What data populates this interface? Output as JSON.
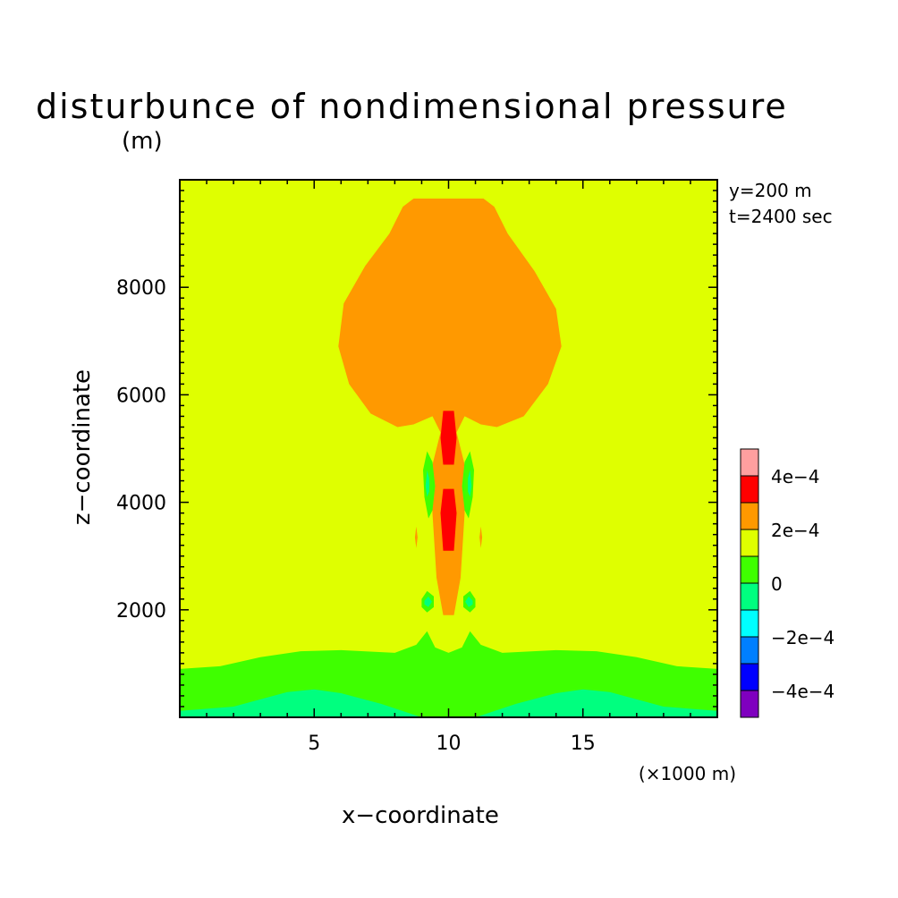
{
  "chart_data": {
    "type": "contour",
    "title": "disturbunce of nondimensional pressure",
    "y_unit_label": "(m)",
    "x_unit_label": "(×1000 m)",
    "xlabel": "x−coordinate",
    "ylabel": "z−coordinate",
    "annotations": [
      "y=200 m",
      "t=2400 sec"
    ],
    "xlim": [
      0,
      20
    ],
    "ylim": [
      0,
      10000
    ],
    "x_ticks": [
      {
        "value": 5,
        "label": "5"
      },
      {
        "value": 10,
        "label": "10"
      },
      {
        "value": 15,
        "label": "15"
      }
    ],
    "y_ticks": [
      {
        "value": 2000,
        "label": "2000"
      },
      {
        "value": 4000,
        "label": "4000"
      },
      {
        "value": 6000,
        "label": "6000"
      },
      {
        "value": 8000,
        "label": "8000"
      }
    ],
    "colorbar": {
      "levels": [
        {
          "range": [
            -0.0005,
            -0.0004
          ],
          "color": "#7f00bf"
        },
        {
          "range": [
            -0.0004,
            -0.0003
          ],
          "color": "#0000ff"
        },
        {
          "range": [
            -0.0003,
            -0.0002
          ],
          "color": "#007fff"
        },
        {
          "range": [
            -0.0002,
            -0.0001
          ],
          "color": "#00ffff"
        },
        {
          "range": [
            -0.0001,
            0
          ],
          "color": "#00ff7f"
        },
        {
          "range": [
            0,
            0.0001
          ],
          "color": "#3fff00"
        },
        {
          "range": [
            0.0001,
            0.0002
          ],
          "color": "#dfff00"
        },
        {
          "range": [
            0.0002,
            0.0003
          ],
          "color": "#ff9900"
        },
        {
          "range": [
            0.0003,
            0.0004
          ],
          "color": "#ff0000"
        },
        {
          "range": [
            0.0004,
            0.0005
          ],
          "color": "#ff9f9f"
        }
      ],
      "tick_labels": [
        {
          "value": 0.0004,
          "label": "4e−4"
        },
        {
          "value": 0.0002,
          "label": "2e−4"
        },
        {
          "value": 0,
          "label": "0"
        },
        {
          "value": -0.0002,
          "label": "−2e−4"
        },
        {
          "value": -0.0004,
          "label": "−4e−4"
        }
      ]
    },
    "regions": [
      {
        "name": "background-field",
        "level": 0.00015,
        "color": "#dfff00",
        "path": [
          [
            0,
            0
          ],
          [
            20,
            0
          ],
          [
            20,
            10000
          ],
          [
            0,
            10000
          ]
        ]
      },
      {
        "name": "lower-band",
        "level": 5e-05,
        "color": "#3fff00",
        "path": [
          [
            0,
            0
          ],
          [
            0,
            900
          ],
          [
            1.5,
            950
          ],
          [
            3,
            1120
          ],
          [
            4.5,
            1230
          ],
          [
            6,
            1250
          ],
          [
            8,
            1200
          ],
          [
            8.8,
            1350
          ],
          [
            9.2,
            1600
          ],
          [
            9.5,
            1300
          ],
          [
            10,
            1200
          ],
          [
            10.5,
            1300
          ],
          [
            10.8,
            1600
          ],
          [
            11.2,
            1350
          ],
          [
            12,
            1200
          ],
          [
            14,
            1250
          ],
          [
            15.5,
            1230
          ],
          [
            17,
            1120
          ],
          [
            18.5,
            950
          ],
          [
            20,
            900
          ],
          [
            20,
            0
          ]
        ]
      },
      {
        "name": "near-surface-band",
        "level": -5e-05,
        "color": "#00ff7f",
        "path": [
          [
            0,
            0
          ],
          [
            0,
            120
          ],
          [
            2,
            200
          ],
          [
            4,
            470
          ],
          [
            5,
            520
          ],
          [
            6,
            450
          ],
          [
            7.5,
            250
          ],
          [
            9,
            0
          ],
          [
            11,
            0
          ],
          [
            12.5,
            250
          ],
          [
            14,
            450
          ],
          [
            15,
            520
          ],
          [
            16,
            470
          ],
          [
            18,
            200
          ],
          [
            20,
            120
          ],
          [
            20,
            0
          ]
        ]
      },
      {
        "name": "upper-anvil",
        "level": 0.00025,
        "color": "#ff9900",
        "path": [
          [
            8.7,
            5450
          ],
          [
            8.1,
            5400
          ],
          [
            7.1,
            5650
          ],
          [
            6.3,
            6200
          ],
          [
            5.9,
            6900
          ],
          [
            6.1,
            7700
          ],
          [
            6.9,
            8400
          ],
          [
            7.8,
            9000
          ],
          [
            8.3,
            9500
          ],
          [
            8.7,
            9650
          ],
          [
            11.3,
            9650
          ],
          [
            11.7,
            9500
          ],
          [
            12.2,
            9000
          ],
          [
            13.2,
            8300
          ],
          [
            14.0,
            7600
          ],
          [
            14.2,
            6900
          ],
          [
            13.7,
            6200
          ],
          [
            12.8,
            5600
          ],
          [
            11.8,
            5400
          ],
          [
            11.2,
            5450
          ],
          [
            10.6,
            5600
          ],
          [
            10.3,
            5300
          ],
          [
            10.6,
            4700
          ],
          [
            10.6,
            3800
          ],
          [
            10.45,
            2600
          ],
          [
            10.2,
            1900
          ],
          [
            9.8,
            1900
          ],
          [
            9.55,
            2600
          ],
          [
            9.4,
            3800
          ],
          [
            9.4,
            4700
          ],
          [
            9.7,
            5300
          ],
          [
            9.4,
            5600
          ]
        ]
      },
      {
        "name": "core-upper-max",
        "level": 0.00035,
        "color": "#ff0000",
        "path": [
          [
            9.8,
            5700
          ],
          [
            10.2,
            5700
          ],
          [
            10.3,
            5200
          ],
          [
            10.2,
            4700
          ],
          [
            9.8,
            4700
          ],
          [
            9.7,
            5200
          ]
        ]
      },
      {
        "name": "core-lower-max",
        "level": 0.00035,
        "color": "#ff0000",
        "path": [
          [
            9.8,
            4250
          ],
          [
            10.2,
            4250
          ],
          [
            10.3,
            3800
          ],
          [
            10.2,
            3100
          ],
          [
            9.8,
            3100
          ],
          [
            9.7,
            3800
          ]
        ]
      },
      {
        "name": "left-lobe-upper",
        "level": 5e-05,
        "color": "#3fff00",
        "path": [
          [
            9.2,
            4950
          ],
          [
            9.4,
            4750
          ],
          [
            9.5,
            4300
          ],
          [
            9.4,
            3850
          ],
          [
            9.25,
            3700
          ],
          [
            9.1,
            4100
          ],
          [
            9.05,
            4600
          ]
        ]
      },
      {
        "name": "right-lobe-upper",
        "level": 5e-05,
        "color": "#3fff00",
        "path": [
          [
            10.8,
            4950
          ],
          [
            10.6,
            4750
          ],
          [
            10.5,
            4300
          ],
          [
            10.6,
            3850
          ],
          [
            10.75,
            3700
          ],
          [
            10.9,
            4100
          ],
          [
            10.95,
            4600
          ]
        ]
      },
      {
        "name": "left-lobe-core",
        "level": -5e-05,
        "color": "#00ff7f",
        "path": [
          [
            9.2,
            4600
          ],
          [
            9.28,
            4450
          ],
          [
            9.28,
            4200
          ],
          [
            9.2,
            4100
          ],
          [
            9.14,
            4300
          ]
        ]
      },
      {
        "name": "right-lobe-core",
        "level": -5e-05,
        "color": "#00ff7f",
        "path": [
          [
            10.8,
            4600
          ],
          [
            10.72,
            4450
          ],
          [
            10.72,
            4200
          ],
          [
            10.8,
            4100
          ],
          [
            10.86,
            4300
          ]
        ]
      },
      {
        "name": "left-lobe-lower",
        "level": 5e-05,
        "color": "#3fff00",
        "path": [
          [
            9.0,
            2200
          ],
          [
            9.2,
            2350
          ],
          [
            9.45,
            2250
          ],
          [
            9.45,
            2050
          ],
          [
            9.2,
            1950
          ],
          [
            9.0,
            2050
          ]
        ]
      },
      {
        "name": "right-lobe-lower",
        "level": 5e-05,
        "color": "#3fff00",
        "path": [
          [
            11.0,
            2200
          ],
          [
            10.8,
            2350
          ],
          [
            10.55,
            2250
          ],
          [
            10.55,
            2050
          ],
          [
            10.8,
            1950
          ],
          [
            11.0,
            2050
          ]
        ]
      },
      {
        "name": "left-lobe-lower-core",
        "level": -5e-05,
        "color": "#00ff7f",
        "path": [
          [
            9.1,
            2170
          ],
          [
            9.25,
            2250
          ],
          [
            9.38,
            2150
          ],
          [
            9.25,
            2050
          ],
          [
            9.1,
            2100
          ]
        ]
      },
      {
        "name": "right-lobe-lower-core",
        "level": -5e-05,
        "color": "#00ff7f",
        "path": [
          [
            10.9,
            2170
          ],
          [
            10.75,
            2250
          ],
          [
            10.62,
            2150
          ],
          [
            10.75,
            2050
          ],
          [
            10.9,
            2100
          ]
        ]
      },
      {
        "name": "left-sliver",
        "level": 0.00025,
        "color": "#ff9900",
        "path": [
          [
            8.8,
            3550
          ],
          [
            8.85,
            3350
          ],
          [
            8.8,
            3150
          ],
          [
            8.75,
            3350
          ]
        ]
      },
      {
        "name": "right-sliver",
        "level": 0.00025,
        "color": "#ff9900",
        "path": [
          [
            11.2,
            3550
          ],
          [
            11.25,
            3350
          ],
          [
            11.2,
            3150
          ],
          [
            11.15,
            3350
          ]
        ]
      }
    ]
  }
}
